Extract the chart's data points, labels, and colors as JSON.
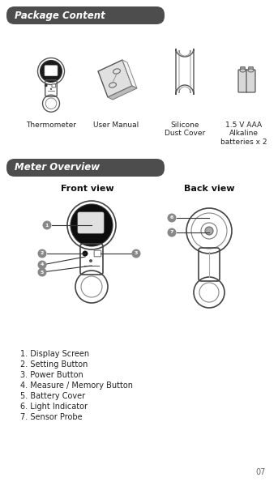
{
  "bg_color": "#ffffff",
  "page_width": 3.43,
  "page_height": 6.0,
  "section1_title": "Package Content",
  "section2_title": "Meter Overview",
  "package_items": [
    "Thermometer",
    "User Manual",
    "Silicone\nDust Cover",
    "1.5 V AAA\nAlkaline\nbatteries x 2"
  ],
  "front_view_label": "Front view",
  "back_view_label": "Back view",
  "numbered_items": [
    "1. Display Screen",
    "2. Setting Button",
    "3. Power Button",
    "4. Measure / Memory Button",
    "5. Battery Cover",
    "6. Light Indicator",
    "7. Sensor Probe"
  ],
  "header_bg": "#4d4d4d",
  "header_text_color": "#ffffff",
  "callout_bg": "#888888",
  "line_color": "#444444",
  "page_num": "07",
  "font_size_header": 8.5,
  "font_size_label": 6.5,
  "font_size_list": 7.0
}
